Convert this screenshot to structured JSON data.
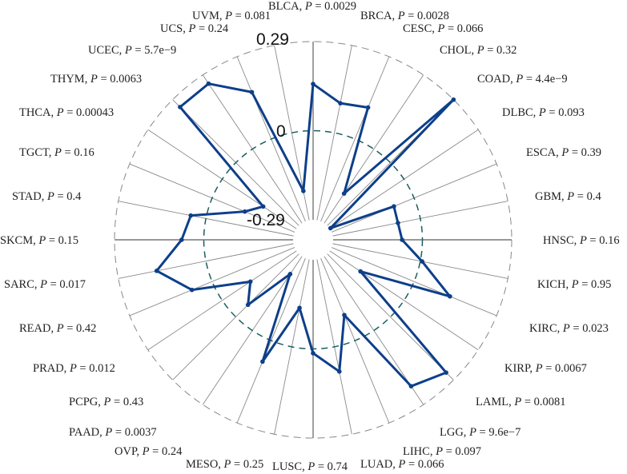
{
  "chart_data": {
    "type": "radar",
    "categories": [
      "BLCA",
      "BRCA",
      "CESC",
      "CHOL",
      "COAD",
      "DLBC",
      "ESCA",
      "GBM",
      "HNSC",
      "KICH",
      "KIRC",
      "KIRP",
      "LAML",
      "LGG",
      "LIHC",
      "LUAD",
      "LUSC",
      "MESO",
      "OVP",
      "PAAD",
      "PCPG",
      "PRAD",
      "READ",
      "SARC",
      "SKCM",
      "STAD",
      "TGCT",
      "THCA",
      "THYM",
      "UCEC",
      "UCS",
      "UVM"
    ],
    "p_values": [
      "0.0029",
      "0.0028",
      "0.066",
      "0.32",
      "4.4e−9",
      "0.093",
      "0.39",
      "0.4",
      "0.16",
      "0.95",
      "0.023",
      "0.0067",
      "0.0081",
      "9.6e−7",
      "0.097",
      "0.066",
      "0.74",
      "0.25",
      "0.24",
      "0.0037",
      "0.43",
      "0.012",
      "0.42",
      "0.017",
      "0.15",
      "0.4",
      "0.16",
      "0.00043",
      "0.0063",
      "5.7e−9",
      "0.24",
      "0.081"
    ],
    "values": [
      0.152,
      0.098,
      0.111,
      -0.174,
      0.29,
      -0.287,
      -0.071,
      -0.074,
      -0.066,
      0.006,
      0.126,
      -0.17,
      0.256,
      0.218,
      -0.09,
      0.082,
      0.014,
      -0.129,
      0.074,
      -0.221,
      -0.056,
      -0.11,
      0.071,
      0.163,
      0.072,
      0.05,
      -0.115,
      -0.16,
      0.256,
      0.256,
      0.165,
      -0.193
    ],
    "radial_range": [
      -0.29,
      0.29
    ],
    "radial_ticks": [
      "-0.29",
      "0",
      "0.29"
    ],
    "reference_circle": 0,
    "series_color": "#0d3f8a",
    "reference_color": "#1a5e5e"
  }
}
